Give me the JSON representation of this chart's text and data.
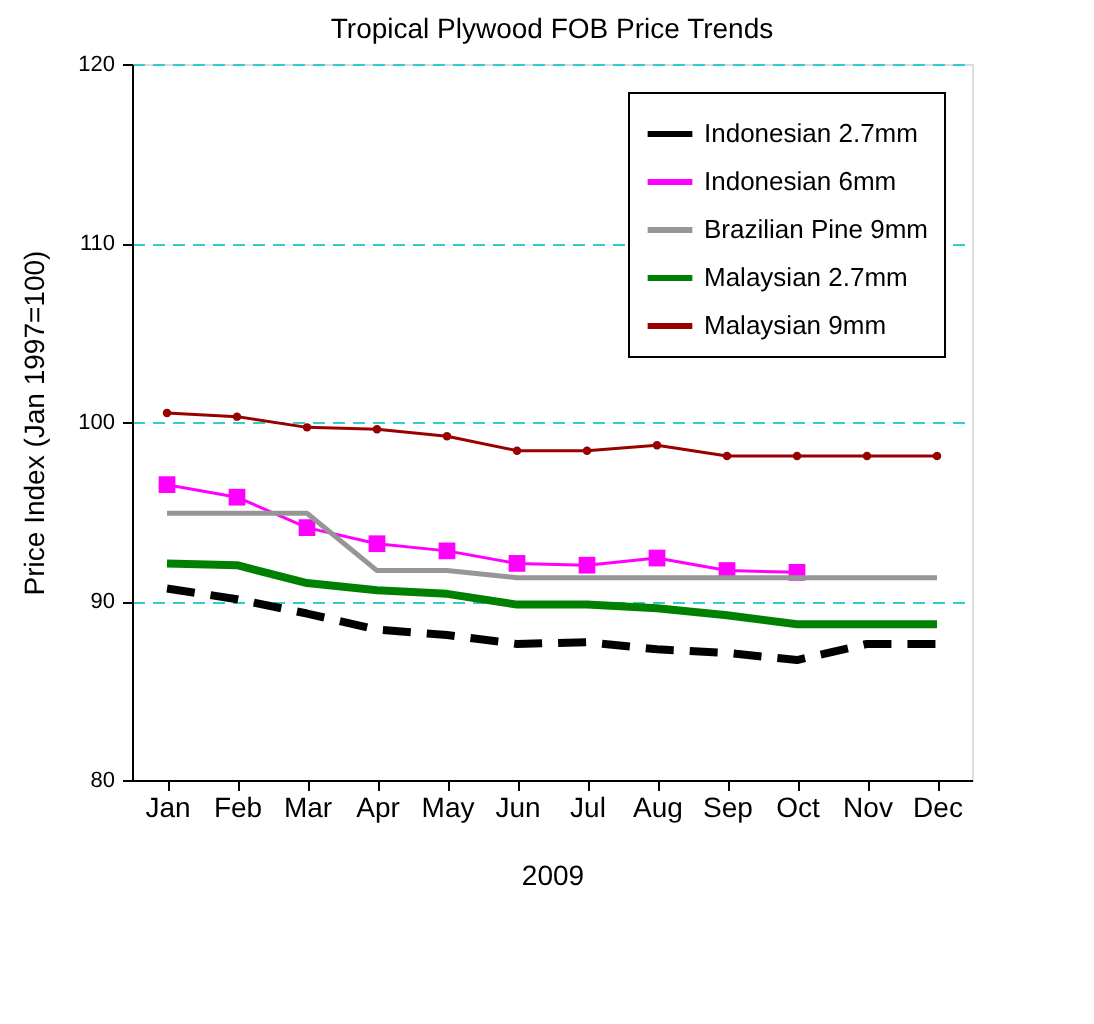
{
  "chart_data": {
    "type": "line",
    "title": "Tropical Plywood FOB Price Trends",
    "xlabel": "2009",
    "ylabel": "Price Index (Jan 1997=100)",
    "categories": [
      "Jan",
      "Feb",
      "Mar",
      "Apr",
      "May",
      "Jun",
      "Jul",
      "Aug",
      "Sep",
      "Oct",
      "Nov",
      "Dec"
    ],
    "series": [
      {
        "name": "Indonesian 2.7mm",
        "color": "#000000",
        "line_style": "dashed",
        "marker": "none",
        "values": [
          90.7,
          90.1,
          89.3,
          88.4,
          88.1,
          87.6,
          87.7,
          87.3,
          87.1,
          86.7,
          87.6,
          87.6
        ]
      },
      {
        "name": "Indonesian 6mm",
        "color": "#ff00ff",
        "line_style": "solid",
        "marker": "square",
        "values": [
          96.5,
          95.8,
          94.1,
          93.2,
          92.8,
          92.1,
          92.0,
          92.4,
          91.7,
          91.6,
          null,
          null
        ]
      },
      {
        "name": "Brazilian Pine 9mm",
        "color": "#969696",
        "line_style": "solid",
        "marker": "none",
        "values": [
          94.9,
          94.9,
          94.9,
          91.7,
          91.7,
          91.3,
          91.3,
          91.3,
          91.3,
          91.3,
          91.3,
          91.3
        ]
      },
      {
        "name": "Malaysian 2.7mm",
        "color": "#008000",
        "line_style": "solid",
        "marker": "none",
        "values": [
          92.1,
          92.0,
          91.0,
          90.6,
          90.4,
          89.8,
          89.8,
          89.6,
          89.2,
          88.7,
          88.7,
          88.7
        ]
      },
      {
        "name": "Malaysian 9mm",
        "color": "#990000",
        "line_style": "solid",
        "marker": "circle",
        "values": [
          100.5,
          100.3,
          99.7,
          99.6,
          99.2,
          98.4,
          98.4,
          98.7,
          98.1,
          98.1,
          98.1,
          98.1
        ]
      }
    ],
    "ylim": [
      80,
      120
    ],
    "yticks": [
      80,
      90,
      100,
      110,
      120
    ],
    "grid": "y",
    "legend": "top right"
  }
}
